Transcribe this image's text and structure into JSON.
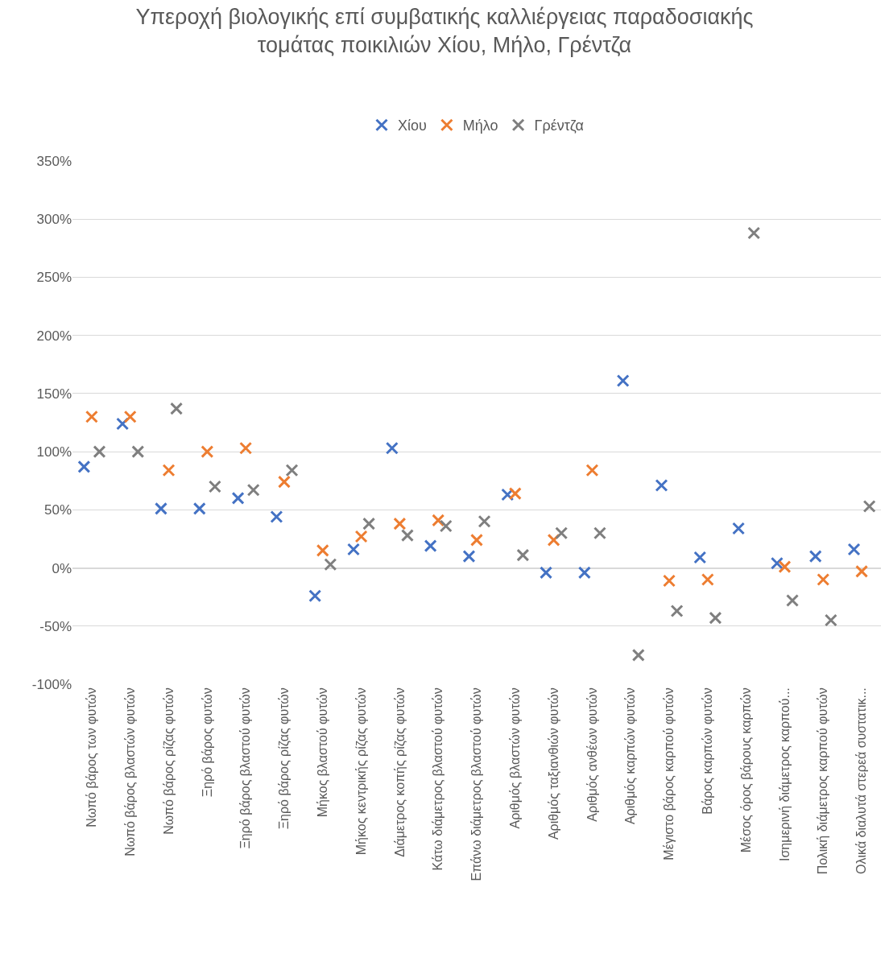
{
  "chart_data": {
    "type": "scatter",
    "title": "Υπεροχή βιολογικής επί συμβατικής καλλιέργειας παραδοσιακής\nτομάτας ποικιλιών Χίου, Μήλο, Γρέντζα",
    "categories": [
      "Νωπό βάρος των φυτών",
      "Νωπό βάρος βλαστών φυτών",
      "Νωπό βάρος ρίζας φυτών",
      "Ξηρό βάρος φυτών",
      "Ξηρό βάρος βλαστού φυτών",
      "Ξηρό βάρος ρίζας φυτών",
      "Μήκος βλαστού φυτών",
      "Μήκος κεντρικής ρίζας φυτών",
      "Διάμετρος κοπής ρίζας φυτών",
      "Κάτω διάμετρος βλαστού φυτών",
      "Επάνω διάμετρος βλαστού φυτών",
      "Αριθμός βλαστών φυτών",
      "Αριθμός ταξιανθιών φυτών",
      "Αριθμός ανθέων φυτών",
      "Αριθμός καρπών φυτών",
      "Μέγιστο βάρος καρπού φυτών",
      "Βάρος καρπών φυτών",
      "Μέσος όρος βάρους καρπών",
      "Ισημερινή διάμετρος καρπού...",
      "Πολική διάμετρος καρπού φυτών",
      "Ολικά διαλυτά στερεά συστατικ..."
    ],
    "series": [
      {
        "name": "Χίου",
        "color": "#4472c4",
        "values": [
          87,
          124,
          51,
          51,
          60,
          44,
          -24,
          16,
          103,
          19,
          10,
          63,
          -4,
          -4,
          161,
          71,
          9,
          34,
          4,
          10,
          16
        ]
      },
      {
        "name": "Μήλο",
        "color": "#ed7d31",
        "values": [
          130,
          130,
          84,
          100,
          103,
          74,
          15,
          27,
          38,
          41,
          24,
          64,
          24,
          84,
          null,
          -11,
          -10,
          null,
          1,
          -10,
          -3
        ]
      },
      {
        "name": "Γρέντζα",
        "color": "#7f7f7f",
        "values": [
          100,
          100,
          137,
          70,
          67,
          84,
          3,
          38,
          28,
          36,
          40,
          11,
          30,
          30,
          -75,
          -37,
          -43,
          288,
          -28,
          -45,
          53
        ]
      }
    ],
    "ylim": [
      -100,
      350
    ],
    "yticks": [
      {
        "value": -100,
        "label": "-100%"
      },
      {
        "value": -50,
        "label": "-50%"
      },
      {
        "value": 0,
        "label": "0%"
      },
      {
        "value": 50,
        "label": "50%"
      },
      {
        "value": 100,
        "label": "100%"
      },
      {
        "value": 150,
        "label": "150%"
      },
      {
        "value": 200,
        "label": "200%"
      },
      {
        "value": 250,
        "label": "250%"
      },
      {
        "value": 300,
        "label": "300%"
      },
      {
        "value": 350,
        "label": "350%"
      }
    ],
    "grid": "y",
    "legend": "top",
    "marker": "cross"
  }
}
